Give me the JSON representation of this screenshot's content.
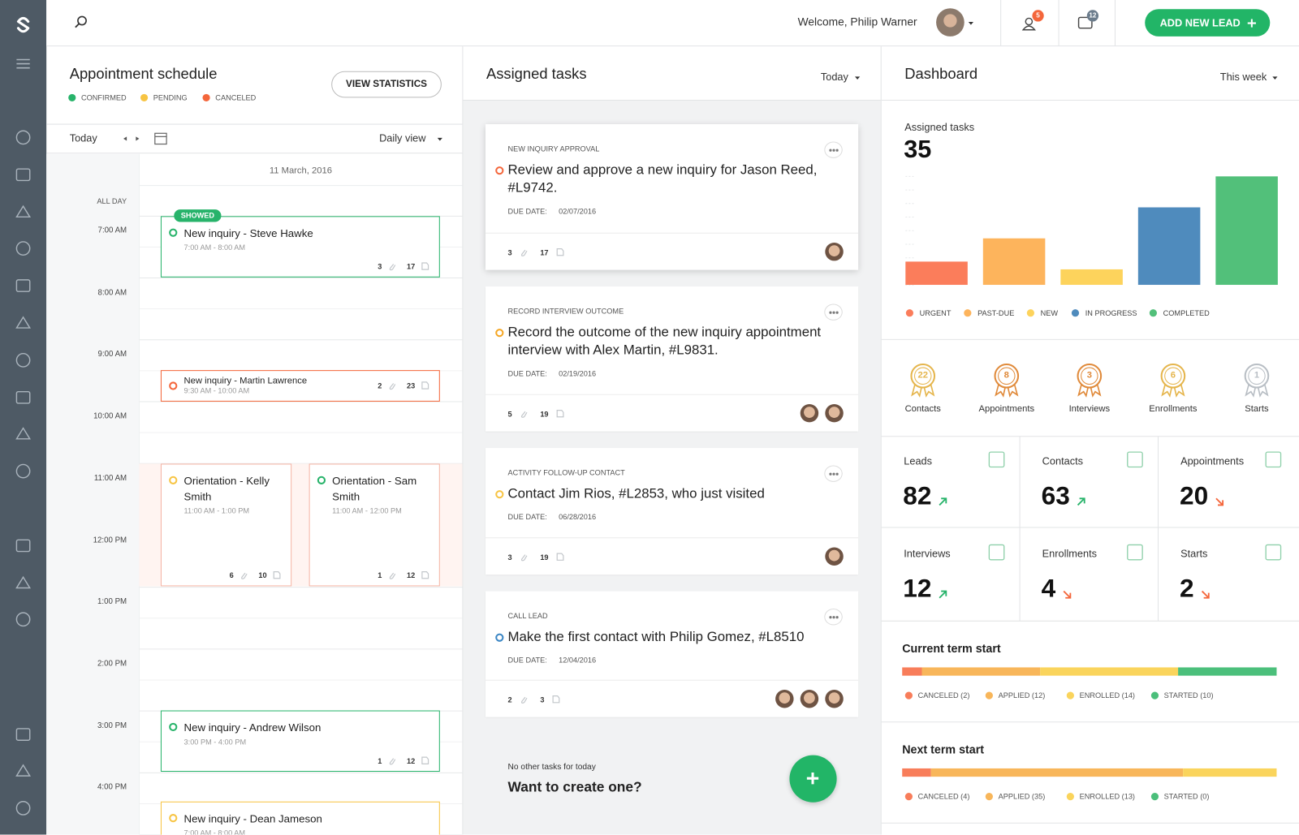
{
  "header": {
    "welcome": "Welcome, Philip Warner",
    "people_badge": 5,
    "messages_badge": 12,
    "add_button": "ADD NEW LEAD"
  },
  "schedule": {
    "title": "Appointment schedule",
    "legend": [
      {
        "label": "CONFIRMED",
        "color": "#27b36a"
      },
      {
        "label": "PENDING",
        "color": "#f7c443"
      },
      {
        "label": "CANCELED",
        "color": "#f4663b"
      }
    ],
    "button": "VIEW STATISTICS",
    "today": "Today",
    "view": "Daily view",
    "date": "11 March, 2016",
    "all_day": "ALL DAY",
    "times": [
      "7:00 AM",
      "8:00 AM",
      "9:00 AM",
      "10:00 AM",
      "11:00 AM",
      "12:00 PM",
      "1:00 PM",
      "2:00 PM",
      "3:00 PM",
      "4:00 PM"
    ],
    "events": [
      {
        "badge": "SHOWED",
        "title": "New inquiry - Steve Hawke",
        "time": "7:00 AM - 8:00 AM",
        "attachments": 3,
        "comments": 17,
        "color": "#27b36a",
        "border": "#27b36a"
      },
      {
        "title": "New inquiry - Martin Lawrence",
        "time": "9:30 AM - 10:00 AM",
        "attachments": 2,
        "comments": 23,
        "color": "#f4663b",
        "border": "#f4663b"
      },
      {
        "title": "Orientation - Kelly Smith",
        "time": "11:00 AM - 1:00 PM",
        "attachments": 6,
        "comments": 10,
        "color": "#f7c443",
        "border": "#f5b4a4",
        "highlight": true
      },
      {
        "title": "Orientation - Sam Smith",
        "time": "11:00 AM - 12:00 PM",
        "attachments": 1,
        "comments": 12,
        "color": "#27b36a",
        "border": "#f5b4a4",
        "highlight": true
      },
      {
        "title": "New inquiry - Andrew Wilson",
        "time": "3:00 PM - 4:00 PM",
        "attachments": 1,
        "comments": 12,
        "color": "#27b36a",
        "border": "#27b36a"
      },
      {
        "title": "New inquiry - Dean Jameson",
        "time": "7:00 AM - 8:00 AM",
        "color": "#f7c443",
        "border": "#f7c443"
      }
    ]
  },
  "tasks": {
    "title": "Assigned tasks",
    "filter": "Today",
    "due_label": "DUE DATE:",
    "cards": [
      {
        "category": "NEW INQUIRY APPROVAL",
        "title": "Review and approve a new inquiry for Jason Reed, #L9742.",
        "due": "02/07/2016",
        "attachments": 3,
        "comments": 17,
        "avatars": 1,
        "color": "#f4663b"
      },
      {
        "category": "RECORD INTERVIEW OUTCOME",
        "title": "Record the outcome of the new inquiry appointment interview with Alex Martin, #L9831.",
        "due": "02/19/2016",
        "attachments": 5,
        "comments": 19,
        "avatars": 2,
        "color": "#f5a623"
      },
      {
        "category": "ACTIVITY FOLLOW-UP CONTACT",
        "title": "Contact Jim Rios, #L2853, who just visited",
        "due": "06/28/2016",
        "attachments": 3,
        "comments": 19,
        "avatars": 1,
        "color": "#f7c443"
      },
      {
        "category": "CALL LEAD",
        "title": "Make the first contact with Philip Gomez, #L8510",
        "due": "12/04/2016",
        "attachments": 2,
        "comments": 3,
        "avatars": 3,
        "color": "#3b86c4"
      }
    ],
    "empty_note": "No other tasks for today",
    "prompt": "Want to create one?"
  },
  "dashboard": {
    "title": "Dashboard",
    "filter": "This week",
    "chart": {
      "type": "bar",
      "title": "Assigned tasks",
      "total": 35,
      "categories": [
        "URGENT",
        "PAST-DUE",
        "NEW",
        "IN PROGRESS",
        "COMPLETED"
      ],
      "values": [
        3,
        6,
        2,
        10,
        14
      ],
      "colors": [
        "#fb7d5b",
        "#fdb45c",
        "#fdd35c",
        "#4f8bbd",
        "#52c07a"
      ],
      "ylim": [
        0,
        14
      ]
    },
    "badges": [
      {
        "value": 22,
        "label": "Contacts",
        "color": "#e5b54c"
      },
      {
        "value": 8,
        "label": "Appointments",
        "color": "#e08a3a"
      },
      {
        "value": 3,
        "label": "Interviews",
        "color": "#e08a3a"
      },
      {
        "value": 6,
        "label": "Enrollments",
        "color": "#e5b54c"
      },
      {
        "value": 1,
        "label": "Starts",
        "color": "#b8bec4"
      }
    ],
    "stats": [
      {
        "label": "Leads",
        "value": 82,
        "trend": "up"
      },
      {
        "label": "Contacts",
        "value": 63,
        "trend": "up"
      },
      {
        "label": "Appointments",
        "value": 20,
        "trend": "down"
      },
      {
        "label": "Interviews",
        "value": 12,
        "trend": "up"
      },
      {
        "label": "Enrollments",
        "value": 4,
        "trend": "down"
      },
      {
        "label": "Starts",
        "value": 2,
        "trend": "down"
      }
    ],
    "terms": [
      {
        "title": "Current term start",
        "labels": [
          "CANCELED (2)",
          "APPLIED (12)",
          "ENROLLED (14)",
          "STARTED (10)"
        ],
        "values": [
          2,
          12,
          14,
          10
        ],
        "colors": [
          "#f87d5a",
          "#f8b65a",
          "#fad45c",
          "#4bbf7b"
        ]
      },
      {
        "title": "Next term start",
        "labels": [
          "CANCELED (4)",
          "APPLIED (35)",
          "ENROLLED (13)",
          "STARTED (0)"
        ],
        "values": [
          4,
          35,
          13,
          0
        ],
        "colors": [
          "#f87d5a",
          "#f8b65a",
          "#fad45c",
          "#4bbf7b"
        ]
      }
    ]
  }
}
